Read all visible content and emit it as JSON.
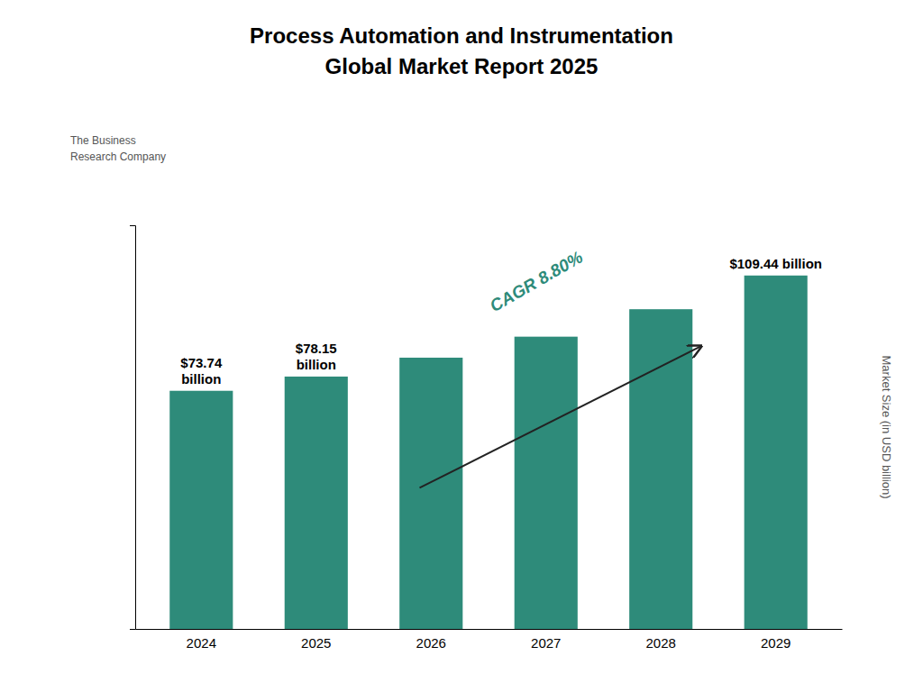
{
  "chart_data": {
    "type": "bar",
    "title": "Process Automation and Instrumentation",
    "subtitle": "Global Market Report 2025",
    "categories": [
      "2024",
      "2025",
      "2026",
      "2027",
      "2028",
      "2029"
    ],
    "values": [
      73.74,
      78.15,
      84.0,
      90.5,
      99.0,
      109.44
    ],
    "color": "#2e8b7a",
    "ylabel": "Market Size (in USD billion)",
    "ylim": [
      0,
      125
    ],
    "tick_labels": "x",
    "grid": false,
    "data_labels": true,
    "value_labels": [
      "$73.74\nbillion",
      "$78.15\nbillion",
      null,
      null,
      null,
      "$109.44 billion"
    ],
    "annotations": [
      "CAGR 8.80%",
      "The Business",
      "Research Company"
    ]
  }
}
